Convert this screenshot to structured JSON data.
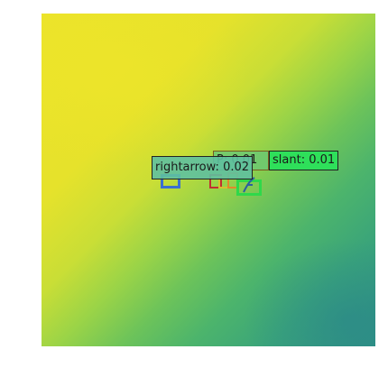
{
  "detections": [
    {
      "label": "rightarrow: 0.02",
      "box_color": "#3a6fd0",
      "label_bg": "#5fc0a0"
    },
    {
      "label": "P: 0.01",
      "box_color": "#e08a2a",
      "label_bg": "#6cc872"
    },
    {
      "label": "slant: 0.01",
      "box_color": "#2fd84a",
      "label_bg": "#2ee05a"
    },
    {
      "label": "",
      "box_color": "#c03030",
      "label_bg": ""
    },
    {
      "label": "",
      "box_color": "#d8c030",
      "label_bg": ""
    }
  ],
  "colors": {
    "image_top_left": "#ece32a",
    "image_bottom_right": "#2f9383"
  }
}
